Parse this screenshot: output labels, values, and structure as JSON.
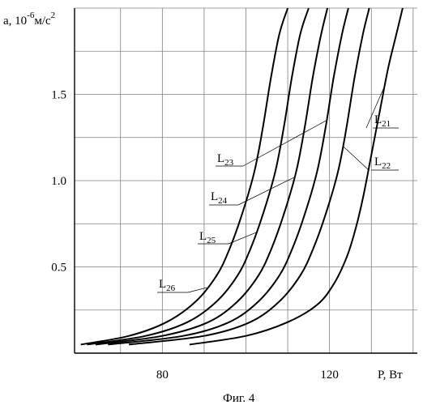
{
  "chart_data": {
    "type": "line",
    "title": "",
    "ylabel_prefix": "a, 10",
    "ylabel_exp": "-6",
    "ylabel_unit": "м/с",
    "ylabel_unit_exp": "2",
    "xlabel": "P, Вт",
    "caption": "Фиг. 4",
    "xlim": [
      59,
      141
    ],
    "ylim": [
      0,
      2.0
    ],
    "x_ticks": [
      {
        "value": 80,
        "label": "80"
      },
      {
        "value": 120,
        "label": "120"
      }
    ],
    "y_ticks": [
      {
        "value": 0.5,
        "label": "0.5"
      },
      {
        "value": 1.0,
        "label": "1.0"
      },
      {
        "value": 1.5,
        "label": "1.5"
      }
    ],
    "grid": true,
    "series": [
      {
        "name_base": "L",
        "name_sub": "21",
        "values": [
          [
            86.5,
            0.05
          ],
          [
            100,
            0.1
          ],
          [
            110,
            0.18
          ],
          [
            117,
            0.28
          ],
          [
            121,
            0.4
          ],
          [
            124,
            0.55
          ],
          [
            126,
            0.7
          ],
          [
            128,
            0.9
          ],
          [
            130,
            1.15
          ],
          [
            132,
            1.4
          ],
          [
            134,
            1.65
          ],
          [
            136,
            1.85
          ],
          [
            137.5,
            2.0
          ]
        ]
      },
      {
        "name_base": "L",
        "name_sub": "22",
        "values": [
          [
            72,
            0.05
          ],
          [
            90,
            0.1
          ],
          [
            101,
            0.18
          ],
          [
            108,
            0.3
          ],
          [
            113,
            0.45
          ],
          [
            116,
            0.6
          ],
          [
            119,
            0.8
          ],
          [
            122,
            1.05
          ],
          [
            124,
            1.3
          ],
          [
            126,
            1.6
          ],
          [
            128,
            1.85
          ],
          [
            129.5,
            2.0
          ]
        ]
      },
      {
        "name_base": "L",
        "name_sub": "23",
        "values": [
          [
            67,
            0.05
          ],
          [
            85,
            0.1
          ],
          [
            96,
            0.18
          ],
          [
            103,
            0.3
          ],
          [
            108,
            0.45
          ],
          [
            111,
            0.6
          ],
          [
            114,
            0.8
          ],
          [
            117,
            1.05
          ],
          [
            119,
            1.3
          ],
          [
            121,
            1.6
          ],
          [
            123,
            1.85
          ],
          [
            124.5,
            2.0
          ]
        ]
      },
      {
        "name_base": "L",
        "name_sub": "24",
        "values": [
          [
            64,
            0.05
          ],
          [
            80,
            0.1
          ],
          [
            91,
            0.18
          ],
          [
            98,
            0.3
          ],
          [
            103,
            0.45
          ],
          [
            106,
            0.6
          ],
          [
            109,
            0.8
          ],
          [
            112,
            1.05
          ],
          [
            114,
            1.3
          ],
          [
            116,
            1.6
          ],
          [
            118,
            1.85
          ],
          [
            119.5,
            2.0
          ]
        ]
      },
      {
        "name_base": "L",
        "name_sub": "25",
        "values": [
          [
            62,
            0.05
          ],
          [
            76,
            0.1
          ],
          [
            86,
            0.18
          ],
          [
            93,
            0.3
          ],
          [
            98,
            0.45
          ],
          [
            101,
            0.6
          ],
          [
            104,
            0.8
          ],
          [
            107,
            1.05
          ],
          [
            109,
            1.3
          ],
          [
            111,
            1.6
          ],
          [
            113,
            1.85
          ],
          [
            115,
            2.0
          ]
        ]
      },
      {
        "name_base": "L",
        "name_sub": "26",
        "values": [
          [
            60.5,
            0.05
          ],
          [
            72,
            0.1
          ],
          [
            81,
            0.18
          ],
          [
            88,
            0.3
          ],
          [
            93,
            0.45
          ],
          [
            96,
            0.6
          ],
          [
            99,
            0.8
          ],
          [
            102,
            1.05
          ],
          [
            104,
            1.3
          ],
          [
            106,
            1.6
          ],
          [
            108,
            1.85
          ],
          [
            110,
            2.0
          ]
        ]
      }
    ]
  }
}
